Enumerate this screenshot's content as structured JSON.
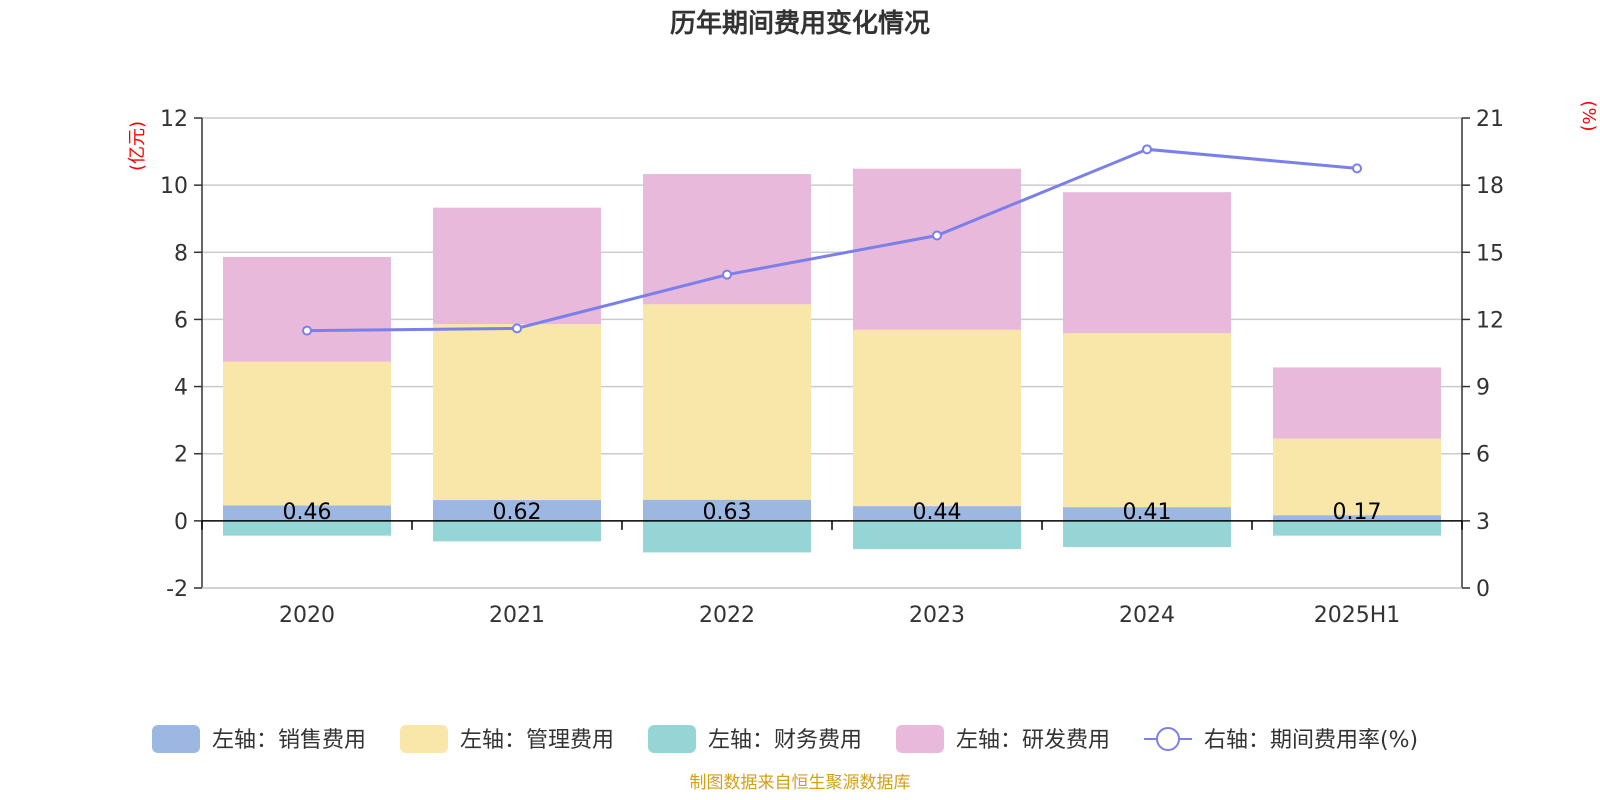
{
  "chart_data": {
    "type": "bar",
    "title": "历年期间费用变化情况",
    "categories": [
      "2020",
      "2021",
      "2022",
      "2023",
      "2024",
      "2025H1"
    ],
    "left_axis": {
      "unit_label": "(亿元)",
      "ylim": [
        -2,
        12
      ],
      "ticks": [
        "-2",
        "0",
        "2",
        "4",
        "6",
        "8",
        "10",
        "12"
      ]
    },
    "right_axis": {
      "unit_label": "(%)",
      "ylim": [
        0,
        21
      ],
      "ticks": [
        "0",
        "3",
        "6",
        "9",
        "12",
        "15",
        "18",
        "21"
      ]
    },
    "series": [
      {
        "name": "左轴：销售费用",
        "type": "bar",
        "axis": "left",
        "color": "#9DB7E3",
        "values": [
          0.46,
          0.62,
          0.63,
          0.44,
          0.41,
          0.17
        ],
        "labels": [
          "0.46",
          "0.62",
          "0.63",
          "0.44",
          "0.41",
          "0.17"
        ]
      },
      {
        "name": "左轴：管理费用",
        "type": "bar",
        "axis": "left",
        "color": "#F8E7A8",
        "values": [
          4.28,
          5.24,
          5.82,
          5.25,
          5.18,
          2.28
        ]
      },
      {
        "name": "左轴：财务费用",
        "type": "bar",
        "axis": "left",
        "color": "#96D5D6",
        "values": [
          -0.44,
          -0.61,
          -0.94,
          -0.84,
          -0.78,
          -0.44
        ]
      },
      {
        "name": "左轴：研发费用",
        "type": "bar",
        "axis": "left",
        "color": "#E8B9DA",
        "values": [
          3.12,
          3.47,
          3.88,
          4.8,
          4.2,
          2.12
        ]
      },
      {
        "name": "右轴：期间费用率(%)",
        "type": "line",
        "axis": "right",
        "color": "#7B7FEB",
        "values": [
          11.5,
          11.6,
          14.0,
          15.75,
          19.6,
          18.75
        ]
      }
    ],
    "grid": true,
    "legend_position": "bottom"
  },
  "footer": {
    "source": "制图数据来自恒生聚源数据库"
  },
  "colors": {
    "axis_unit": "#FF0000",
    "source_text": "#D4A017",
    "grid": "#CCCCCC",
    "axis_line": "#333333"
  }
}
